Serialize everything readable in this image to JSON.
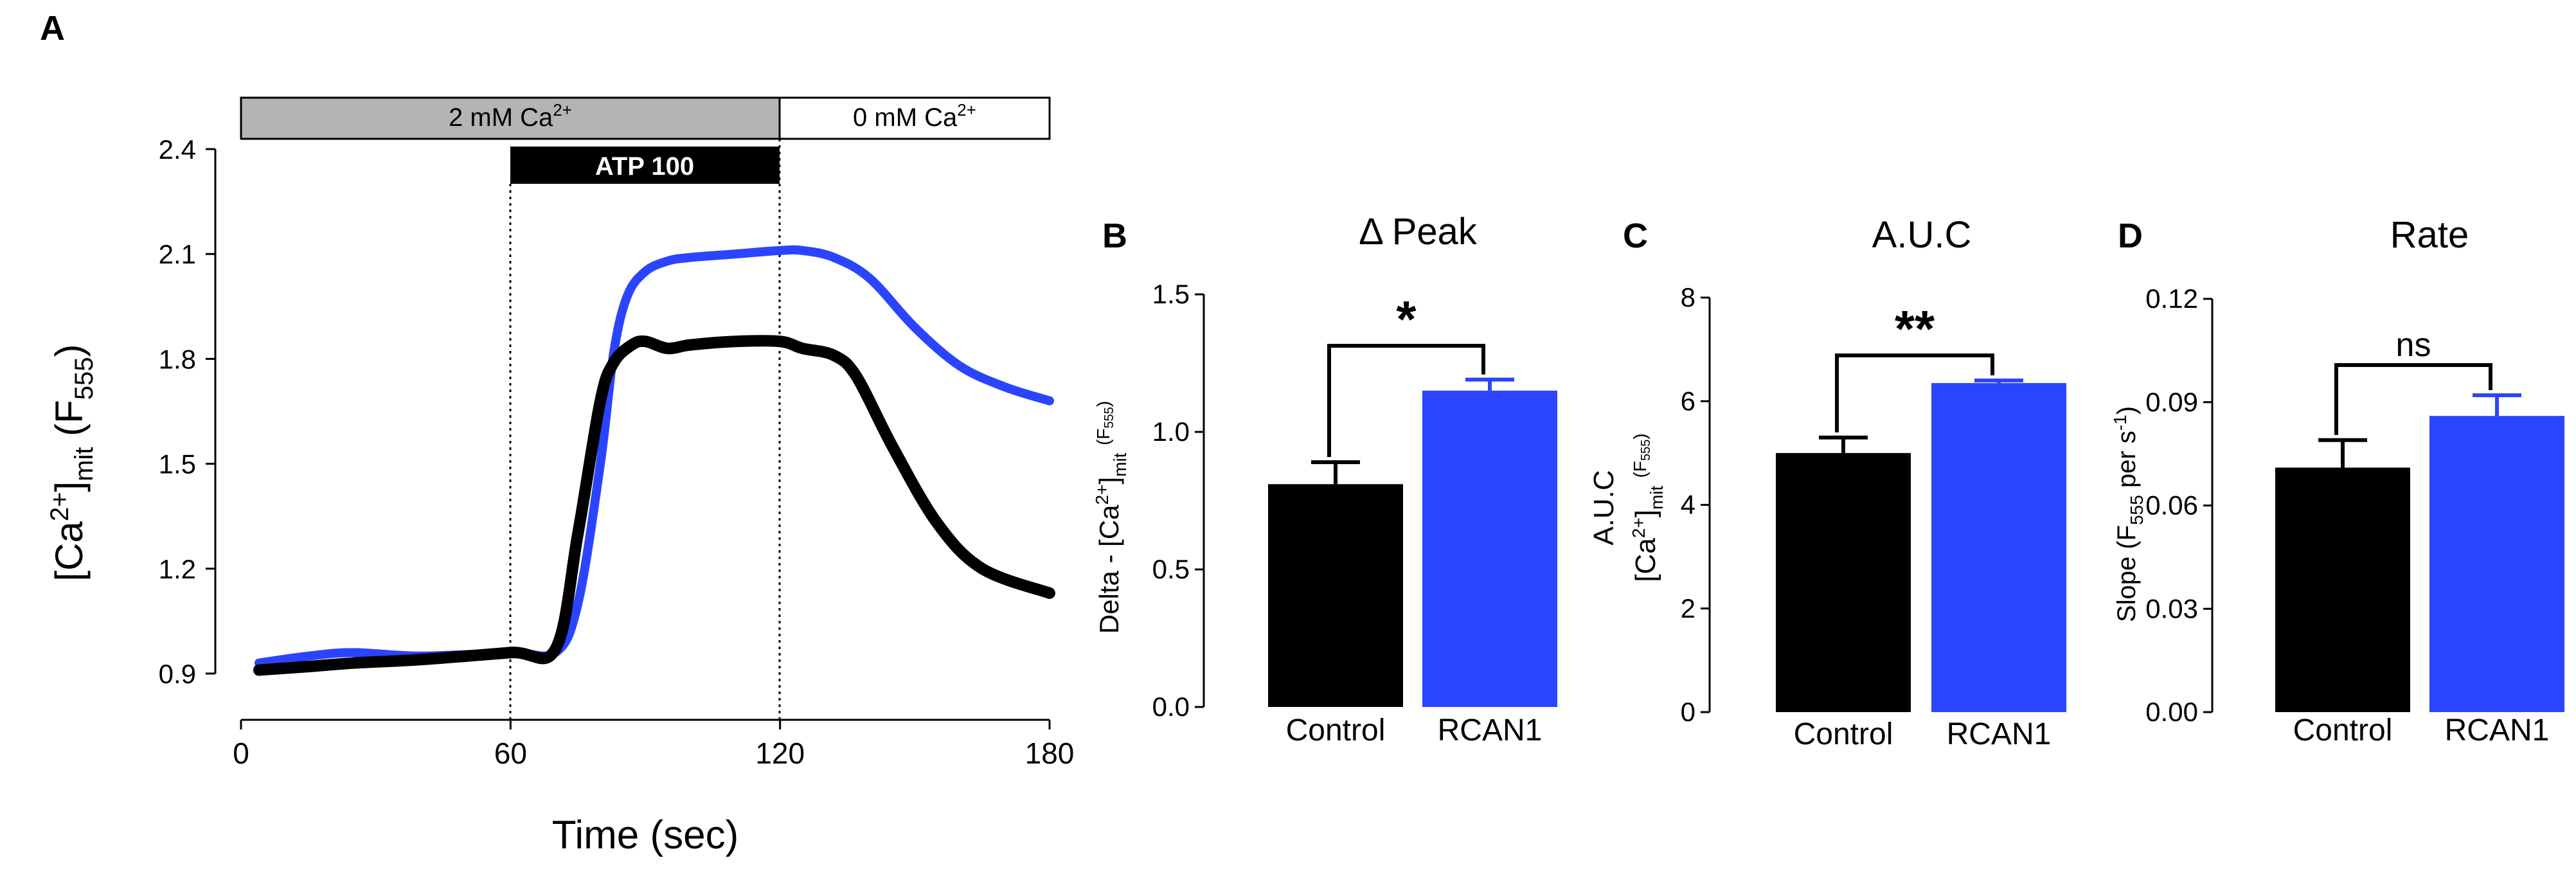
{
  "panels": [
    {
      "id": "A",
      "letter": "A"
    },
    {
      "id": "B",
      "letter": "B"
    },
    {
      "id": "C",
      "letter": "C"
    },
    {
      "id": "D",
      "letter": "D"
    }
  ],
  "chart_data": [
    {
      "id": "A",
      "type": "line",
      "title": "",
      "xlabel": "Time (sec)",
      "ylabel": "[Ca2+]mit (F555)",
      "xlim": [
        0,
        180
      ],
      "ylim": [
        0.9,
        2.4
      ],
      "xticks": [
        0,
        60,
        120,
        180
      ],
      "yticks": [
        0.9,
        1.2,
        1.5,
        1.8,
        2.1,
        2.4
      ],
      "condition_bars": [
        {
          "label": "2 mM Ca2+",
          "x_start": 0,
          "x_end": 120,
          "fill": "#b4b4b4",
          "text_color": "#000000"
        },
        {
          "label": "0 mM Ca2+",
          "x_start": 120,
          "x_end": 180,
          "fill": "#ffffff",
          "text_color": "#000000"
        },
        {
          "label": "ATP 100",
          "x_start": 60,
          "x_end": 120,
          "fill": "#000000",
          "text_color": "#ffffff"
        }
      ],
      "vlines": [
        60,
        120
      ],
      "series": [
        {
          "color": "#2b44ff",
          "x": [
            4,
            15,
            25,
            40,
            60,
            70,
            75,
            80,
            83,
            86,
            90,
            95,
            100,
            110,
            120,
            125,
            132,
            140,
            150,
            160,
            170,
            180
          ],
          "y": [
            0.93,
            0.95,
            0.96,
            0.95,
            0.96,
            0.96,
            1.1,
            1.5,
            1.82,
            1.98,
            2.05,
            2.08,
            2.09,
            2.1,
            2.11,
            2.11,
            2.09,
            2.03,
            1.89,
            1.78,
            1.72,
            1.68
          ]
        },
        {
          "color": "#000000",
          "x": [
            4,
            15,
            25,
            40,
            60,
            70,
            75,
            80,
            83,
            87,
            90,
            95,
            100,
            110,
            120,
            125,
            132,
            137,
            145,
            155,
            165,
            180
          ],
          "y": [
            0.91,
            0.92,
            0.93,
            0.94,
            0.96,
            0.97,
            1.3,
            1.68,
            1.79,
            1.84,
            1.85,
            1.83,
            1.84,
            1.85,
            1.85,
            1.83,
            1.81,
            1.75,
            1.55,
            1.33,
            1.2,
            1.13
          ]
        }
      ]
    },
    {
      "id": "B",
      "type": "bar",
      "title": "Δ Peak",
      "ylabel": "Delta - [Ca2+]mit (F555)",
      "categories": [
        "Control",
        "RCAN1"
      ],
      "values": [
        0.81,
        1.15
      ],
      "errors": [
        0.08,
        0.04
      ],
      "colors": [
        "#000000",
        "#2b44ff"
      ],
      "ylim": [
        0.0,
        1.5
      ],
      "yticks": [
        "0.0",
        "0.5",
        "1.0",
        "1.5"
      ],
      "significance": "*"
    },
    {
      "id": "C",
      "type": "bar",
      "title": "A.U.C",
      "ylabel_line1": "A.U.C",
      "ylabel_line2": "[Ca2+]mit (F555)",
      "categories": [
        "Control",
        "RCAN1"
      ],
      "values": [
        5.0,
        6.35
      ],
      "errors": [
        0.3,
        0.05
      ],
      "colors": [
        "#000000",
        "#2b44ff"
      ],
      "ylim": [
        0,
        8
      ],
      "yticks": [
        "0",
        "2",
        "4",
        "6",
        "8"
      ],
      "significance": "**"
    },
    {
      "id": "D",
      "type": "bar",
      "title": "Rate",
      "ylabel": "Slope (F555 per s-1)",
      "categories": [
        "Control",
        "RCAN1"
      ],
      "values": [
        0.071,
        0.086
      ],
      "errors": [
        0.008,
        0.006
      ],
      "colors": [
        "#000000",
        "#2b44ff"
      ],
      "ylim": [
        0.0,
        0.12
      ],
      "yticks": [
        "0.00",
        "0.03",
        "0.06",
        "0.09",
        "0.12"
      ],
      "significance": "ns"
    }
  ]
}
